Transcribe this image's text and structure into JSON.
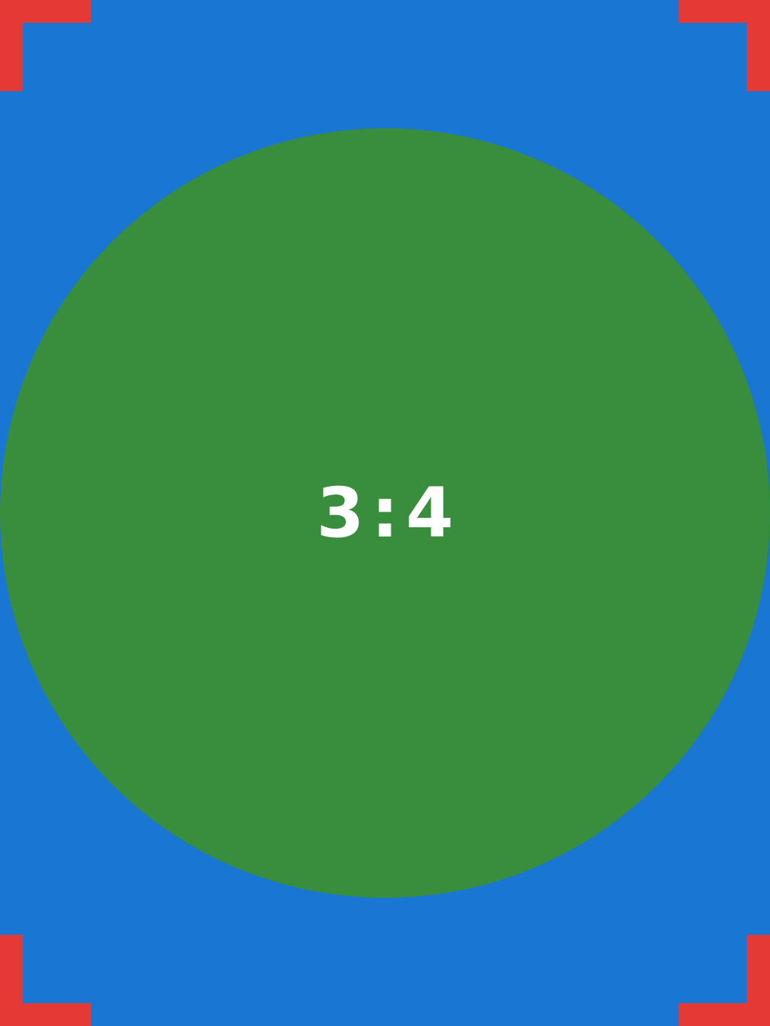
{
  "canvas": {
    "label": "3:4",
    "colors": {
      "background": "#1976D2",
      "circle": "#388E3C",
      "corner_marks": "#E53935",
      "label": "#FFFFFF"
    }
  }
}
